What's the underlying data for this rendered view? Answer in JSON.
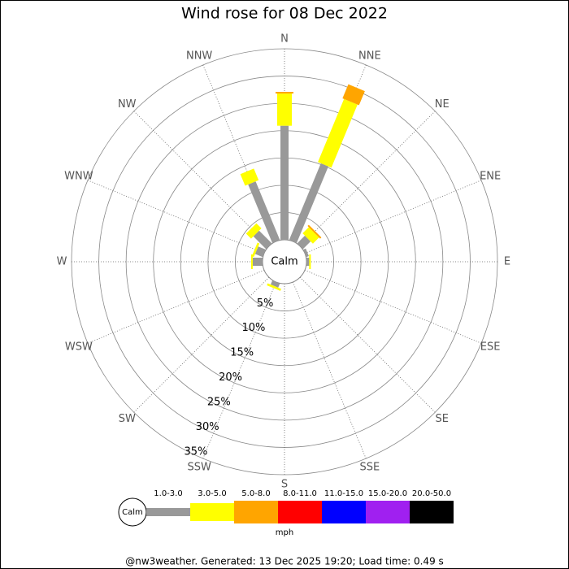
{
  "chart_data": {
    "type": "windrose",
    "title": "Wind rose for 08 Dec 2022",
    "categories": [
      "N",
      "NNE",
      "NE",
      "ENE",
      "E",
      "ESE",
      "SE",
      "SSE",
      "S",
      "SSW",
      "SW",
      "WSW",
      "W",
      "WNW",
      "NW",
      "NNW"
    ],
    "calm_label": "Calm",
    "rlim": [
      0,
      35
    ],
    "rticks": [
      {
        "value": 5,
        "label": "5%"
      },
      {
        "value": 10,
        "label": "10%"
      },
      {
        "value": 15,
        "label": "15%"
      },
      {
        "value": 20,
        "label": "20%"
      },
      {
        "value": 25,
        "label": "25%"
      },
      {
        "value": 30,
        "label": "30%"
      },
      {
        "value": 35,
        "label": "35%"
      }
    ],
    "series": [
      {
        "name": "1.0-3.0",
        "color": "#999999",
        "values": [
          20.9,
          15.2,
          2.0,
          0.5,
          0.5,
          0,
          0,
          0,
          0,
          0.8,
          0,
          0,
          1.8,
          1.5,
          3.3,
          11.6
        ]
      },
      {
        "name": "3.0-5.0",
        "color": "#ffff00",
        "values": [
          5.9,
          12.5,
          1.6,
          0,
          0.3,
          0,
          0,
          0,
          0,
          0.4,
          0,
          0,
          0.3,
          0.4,
          1.3,
          2.3
        ]
      },
      {
        "name": "5.0-8.0",
        "color": "#ffa500",
        "values": [
          0.3,
          2.8,
          0.3,
          0,
          0,
          0,
          0,
          0,
          0,
          0,
          0,
          0,
          0,
          0,
          0,
          0
        ]
      },
      {
        "name": "8.0-11.0",
        "color": "#ff0000",
        "values": [
          0,
          0,
          0,
          0,
          0,
          0,
          0,
          0,
          0,
          0,
          0,
          0,
          0,
          0,
          0,
          0
        ]
      },
      {
        "name": "11.0-15.0",
        "color": "#0000ff",
        "values": [
          0,
          0,
          0,
          0,
          0,
          0,
          0,
          0,
          0,
          0,
          0,
          0,
          0,
          0,
          0,
          0
        ]
      },
      {
        "name": "15.0-20.0",
        "color": "#a020f0",
        "values": [
          0,
          0,
          0,
          0,
          0,
          0,
          0,
          0,
          0,
          0,
          0,
          0,
          0,
          0,
          0,
          0
        ]
      },
      {
        "name": "20.0-50.0",
        "color": "#000000",
        "values": [
          0,
          0,
          0,
          0,
          0,
          0,
          0,
          0,
          0,
          0,
          0,
          0,
          0,
          0,
          0,
          0
        ]
      }
    ],
    "legend_unit": "mph",
    "footer": "@nw3weather.  Generated: 13 Dec 2025 19:20; Load time: 0.49 s"
  }
}
